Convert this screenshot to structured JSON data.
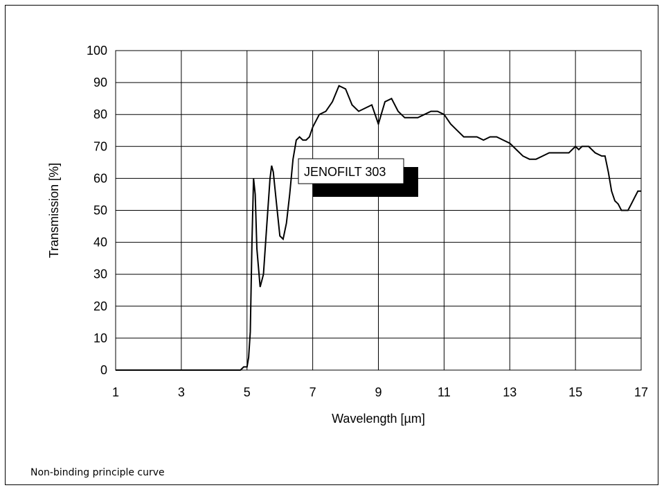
{
  "footnote": "Non-binding principle curve",
  "chart_data": {
    "type": "line",
    "title": "",
    "xlabel": "Wavelength [µm]",
    "ylabel": "Transmission [%]",
    "xlim": [
      1,
      17
    ],
    "ylim": [
      0,
      100
    ],
    "xticks": [
      1,
      3,
      5,
      7,
      9,
      11,
      13,
      15,
      17
    ],
    "yticks": [
      0,
      10,
      20,
      30,
      40,
      50,
      60,
      70,
      80,
      90,
      100
    ],
    "grid": true,
    "legend_label": "JENOFILT 303",
    "legend_placement": "center",
    "line_color": "#000000",
    "series": [
      {
        "x": [
          1.0,
          4.8,
          4.9,
          5.0,
          5.05,
          5.1,
          5.15,
          5.2,
          5.25,
          5.3,
          5.4,
          5.5,
          5.6,
          5.7,
          5.75,
          5.8,
          5.9,
          6.0,
          6.1,
          6.2,
          6.3,
          6.4,
          6.5,
          6.6,
          6.7,
          6.8,
          6.9,
          7.0,
          7.2,
          7.4,
          7.6,
          7.8,
          8.0,
          8.2,
          8.4,
          8.6,
          8.8,
          9.0,
          9.2,
          9.4,
          9.6,
          9.8,
          10.0,
          10.2,
          10.4,
          10.6,
          10.8,
          11.0,
          11.2,
          11.4,
          11.6,
          11.8,
          12.0,
          12.2,
          12.4,
          12.6,
          12.8,
          13.0,
          13.2,
          13.4,
          13.6,
          13.8,
          14.0,
          14.2,
          14.4,
          14.6,
          14.8,
          15.0,
          15.1,
          15.2,
          15.4,
          15.6,
          15.8,
          15.9,
          16.0,
          16.1,
          16.2,
          16.3,
          16.4,
          16.5,
          16.6,
          16.7,
          16.8,
          16.9,
          17.0
        ],
        "y": [
          0,
          0,
          1,
          1,
          4,
          12,
          40,
          60,
          55,
          38,
          26,
          30,
          45,
          60,
          64,
          62,
          52,
          42,
          41,
          46,
          55,
          66,
          72,
          73,
          72,
          72,
          73,
          76,
          80,
          81,
          84,
          89,
          88,
          83,
          81,
          82,
          83,
          77,
          84,
          85,
          81,
          79,
          79,
          79,
          80,
          81,
          81,
          80,
          77,
          75,
          73,
          73,
          73,
          72,
          73,
          73,
          72,
          71,
          69,
          67,
          66,
          66,
          67,
          68,
          68,
          68,
          68,
          70,
          69,
          70,
          70,
          68,
          67,
          67,
          62,
          56,
          53,
          52,
          50,
          50,
          50,
          52,
          54,
          56,
          56
        ]
      }
    ]
  }
}
